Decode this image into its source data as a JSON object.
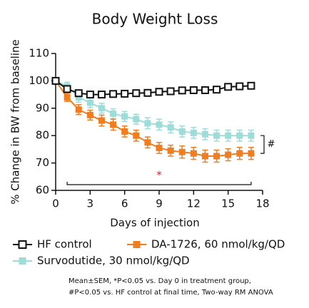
{
  "chart_data": {
    "type": "line",
    "title": "Body Weight Loss",
    "x_label": "Days of injection",
    "y_label": "% Change in BW from baseline",
    "x": [
      0,
      1,
      2,
      3,
      4,
      5,
      6,
      7,
      8,
      9,
      10,
      11,
      12,
      13,
      14,
      15,
      16,
      17
    ],
    "series": [
      {
        "name": "HF control",
        "color": "#111111",
        "marker": "open-square",
        "values": [
          100,
          97,
          95.5,
          95,
          95,
          95.2,
          95.3,
          95.5,
          95.6,
          96,
          96.2,
          96.5,
          96.6,
          96.6,
          96.8,
          97.8,
          98,
          98.2
        ],
        "errors": [
          0.5,
          0.8,
          0.8,
          0.8,
          0.8,
          0.8,
          0.8,
          0.8,
          0.8,
          0.9,
          0.9,
          0.9,
          0.9,
          0.9,
          0.9,
          1,
          1,
          1
        ]
      },
      {
        "name": "DA-1726, 60 nmol/kg/QD",
        "color": "#f07d1f",
        "marker": "square",
        "values": [
          100,
          94,
          89.5,
          87.5,
          85.5,
          84,
          81.5,
          80,
          77.5,
          75.5,
          74.5,
          74,
          73.5,
          72.5,
          72.5,
          73,
          73.5,
          73.5
        ],
        "errors": [
          0.5,
          1.5,
          1.8,
          1.8,
          2,
          2,
          2,
          2,
          2,
          2,
          2,
          2.2,
          2.2,
          2.2,
          2.2,
          2.2,
          2.2,
          2.2
        ]
      },
      {
        "name": "Survodutide, 30 nmol/kg/QD",
        "color": "#9edcd8",
        "marker": "square",
        "values": [
          100,
          98,
          94,
          92,
          90,
          88,
          87,
          86,
          84.5,
          84,
          83,
          81.5,
          81,
          80.5,
          80,
          80,
          80,
          80
        ],
        "errors": [
          0.5,
          1.5,
          1.8,
          1.8,
          1.8,
          1.8,
          1.8,
          1.8,
          2,
          2,
          2,
          2,
          2,
          2,
          2,
          2,
          2,
          2
        ]
      }
    ],
    "xlim": [
      0,
      18
    ],
    "xticks": [
      0,
      3,
      6,
      9,
      12,
      15,
      18
    ],
    "ylim": [
      60,
      110
    ],
    "yticks": [
      60,
      70,
      80,
      90,
      100,
      110
    ],
    "significance_star": {
      "label": "*",
      "from": 1,
      "to": 17,
      "color": "#d7263d"
    },
    "significance_hash": {
      "label": "#"
    },
    "footnote": [
      "Mean±SEM, *P<0.05 vs. Day 0 in treatment group,",
      "#P<0.05 vs. HF control at final time, Two-way RM ANOVA"
    ]
  }
}
